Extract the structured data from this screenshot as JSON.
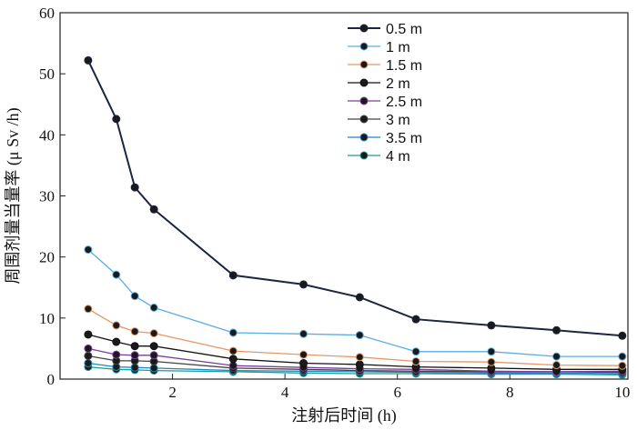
{
  "chart_data": {
    "type": "line",
    "xlabel": "注射后时间 (h)",
    "ylabel": "周围剂量当量率 (μ Sv /h)",
    "xlim": [
      0.0,
      10.1
    ],
    "ylim": [
      0,
      60
    ],
    "xticks": [
      2,
      4,
      6,
      8,
      10
    ],
    "yticks": [
      0,
      10,
      20,
      30,
      40,
      50,
      60
    ],
    "x": [
      0.5,
      1.0,
      1.33,
      1.67,
      3.08,
      4.33,
      5.33,
      6.33,
      7.67,
      8.83,
      10.0
    ],
    "series": [
      {
        "name": "0.5 m",
        "color": "#1c2541",
        "values": [
          52.2,
          42.6,
          31.4,
          27.8,
          17.0,
          15.5,
          13.4,
          9.8,
          8.8,
          8.0,
          7.1
        ]
      },
      {
        "name": "1 m",
        "color": "#5dade2",
        "values": [
          21.2,
          17.1,
          13.6,
          11.7,
          7.6,
          7.4,
          7.2,
          4.5,
          4.5,
          3.7,
          3.7
        ]
      },
      {
        "name": "1.5 m",
        "color": "#e59866",
        "values": [
          11.5,
          8.8,
          7.8,
          7.5,
          4.6,
          4.0,
          3.6,
          2.9,
          2.8,
          2.3,
          2.2
        ]
      },
      {
        "name": "2 m",
        "color": "#111111",
        "values": [
          7.3,
          6.1,
          5.4,
          5.4,
          3.3,
          2.6,
          2.4,
          2.0,
          1.8,
          1.6,
          1.6
        ]
      },
      {
        "name": "2.5 m",
        "color": "#7d3c98",
        "values": [
          5.0,
          4.0,
          3.9,
          3.9,
          2.2,
          1.9,
          1.7,
          1.6,
          1.3,
          1.2,
          1.3
        ]
      },
      {
        "name": "3 m",
        "color": "#444444",
        "values": [
          3.8,
          3.0,
          3.0,
          2.9,
          1.8,
          1.6,
          1.4,
          1.3,
          1.2,
          1.2,
          1.1
        ]
      },
      {
        "name": "3.5 m",
        "color": "#1f88c8",
        "values": [
          2.6,
          2.0,
          1.9,
          1.8,
          1.4,
          1.3,
          1.2,
          1.1,
          1.0,
          1.0,
          0.9
        ]
      },
      {
        "name": "4 m",
        "color": "#1a9e8f",
        "values": [
          2.0,
          1.6,
          1.5,
          1.4,
          1.2,
          1.0,
          0.9,
          0.9,
          0.8,
          0.8,
          0.7
        ]
      }
    ],
    "legend_position": "top-right",
    "grid": false
  }
}
